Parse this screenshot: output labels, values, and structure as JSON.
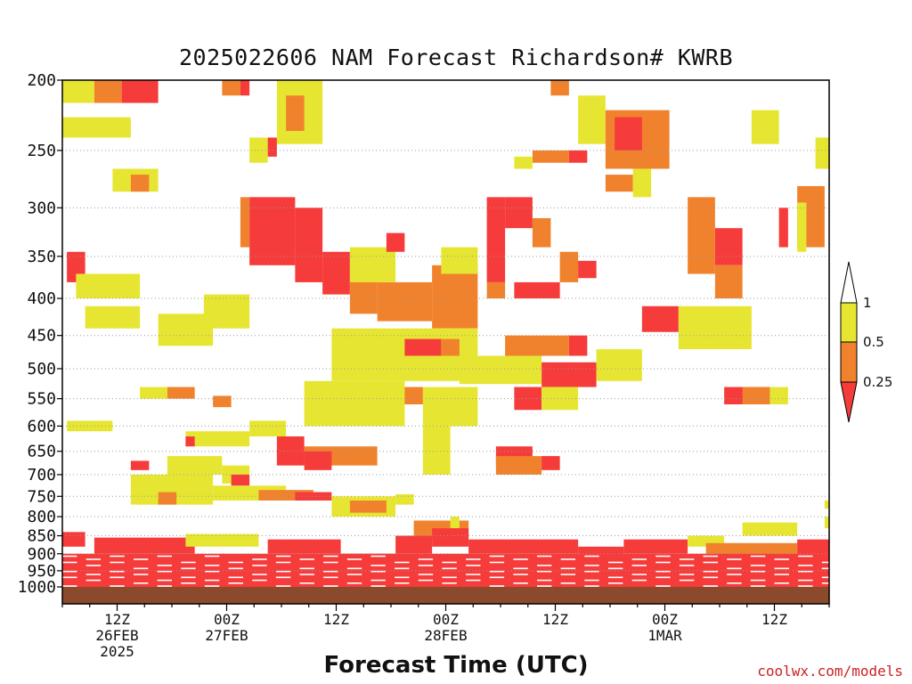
{
  "chart_data": {
    "type": "heatmap",
    "title": "2025022606 NAM Forecast Richardson# KWRB",
    "xlabel": "Forecast Time (UTC)",
    "ylabel": "",
    "y_axis_scale": "pressure (log)",
    "ylim": [
      1000,
      200
    ],
    "y_ticks": [
      200,
      250,
      300,
      350,
      400,
      450,
      500,
      550,
      600,
      650,
      700,
      750,
      800,
      850,
      900,
      950,
      1000
    ],
    "x_forecast_hours_range": [
      0,
      84
    ],
    "x_ticks": [
      {
        "hour": 6,
        "lines": [
          "12Z",
          "26FEB",
          "2025"
        ]
      },
      {
        "hour": 18,
        "lines": [
          "00Z",
          "27FEB"
        ]
      },
      {
        "hour": 30,
        "lines": [
          "12Z"
        ]
      },
      {
        "hour": 42,
        "lines": [
          "00Z",
          "28FEB"
        ]
      },
      {
        "hour": 54,
        "lines": [
          "12Z"
        ]
      },
      {
        "hour": 66,
        "lines": [
          "00Z",
          "1MAR"
        ]
      },
      {
        "hour": 78,
        "lines": [
          "12Z"
        ]
      }
    ],
    "grid": "dotted horizontal at pressure ticks",
    "legend": {
      "placement": "right",
      "boundaries": [
        "1",
        "0.5",
        "0.25"
      ],
      "bins": [
        {
          "range": "0.5-1",
          "color": "#e6e632"
        },
        {
          "range": "0.25-0.5",
          "color": "#f0822d"
        },
        {
          "range": "<0.25",
          "color": "#f63b3b"
        }
      ]
    },
    "colors": {
      "low": "#f63b3b",
      "mid": "#f0822d",
      "high": "#e6e632",
      "ground": "#8b4a2b"
    },
    "regions": [
      {
        "p": [
          200,
          215
        ],
        "h": [
          0,
          3.5
        ],
        "bin": "high"
      },
      {
        "p": [
          200,
          215
        ],
        "h": [
          3.5,
          6.5
        ],
        "bin": "mid"
      },
      {
        "p": [
          200,
          215
        ],
        "h": [
          6.5,
          10.5
        ],
        "bin": "low"
      },
      {
        "p": [
          225,
          240
        ],
        "h": [
          0,
          7.5
        ],
        "bin": "high"
      },
      {
        "p": [
          200,
          210
        ],
        "h": [
          17.5,
          19.5
        ],
        "bin": "mid"
      },
      {
        "p": [
          200,
          210
        ],
        "h": [
          19.5,
          20.5
        ],
        "bin": "low"
      },
      {
        "p": [
          200,
          245
        ],
        "h": [
          23.5,
          28.5
        ],
        "bin": "high"
      },
      {
        "p": [
          210,
          235
        ],
        "h": [
          24.5,
          26.5
        ],
        "bin": "mid"
      },
      {
        "p": [
          240,
          260
        ],
        "h": [
          20.5,
          22.5
        ],
        "bin": "high"
      },
      {
        "p": [
          240,
          255
        ],
        "h": [
          22.5,
          23.5
        ],
        "bin": "low"
      },
      {
        "p": [
          265,
          285
        ],
        "h": [
          5.5,
          10.5
        ],
        "bin": "high"
      },
      {
        "p": [
          270,
          285
        ],
        "h": [
          7.5,
          9.5
        ],
        "bin": "mid"
      },
      {
        "p": [
          200,
          210
        ],
        "h": [
          53.5,
          55.5
        ],
        "bin": "mid"
      },
      {
        "p": [
          210,
          245
        ],
        "h": [
          56.5,
          59.5
        ],
        "bin": "high"
      },
      {
        "p": [
          220,
          265
        ],
        "h": [
          59.5,
          66.5
        ],
        "bin": "mid"
      },
      {
        "p": [
          225,
          250
        ],
        "h": [
          60.5,
          63.5
        ],
        "bin": "low"
      },
      {
        "p": [
          250,
          260
        ],
        "h": [
          51.5,
          55.5
        ],
        "bin": "mid"
      },
      {
        "p": [
          250,
          260
        ],
        "h": [
          55.5,
          57.5
        ],
        "bin": "low"
      },
      {
        "p": [
          255,
          265
        ],
        "h": [
          49.5,
          51.5
        ],
        "bin": "high"
      },
      {
        "p": [
          220,
          245
        ],
        "h": [
          75.5,
          78.5
        ],
        "bin": "high"
      },
      {
        "p": [
          240,
          265
        ],
        "h": [
          82.5,
          84
        ],
        "bin": "high"
      },
      {
        "p": [
          270,
          285
        ],
        "h": [
          59.5,
          62.5
        ],
        "bin": "mid"
      },
      {
        "p": [
          265,
          290
        ],
        "h": [
          62.5,
          64.5
        ],
        "bin": "high"
      },
      {
        "p": [
          290,
          340
        ],
        "h": [
          19.5,
          20.5
        ],
        "bin": "mid"
      },
      {
        "p": [
          290,
          360
        ],
        "h": [
          20.5,
          25.5
        ],
        "bin": "low"
      },
      {
        "p": [
          300,
          380
        ],
        "h": [
          25.5,
          28.5
        ],
        "bin": "low"
      },
      {
        "p": [
          345,
          395
        ],
        "h": [
          28.5,
          31.5
        ],
        "bin": "low"
      },
      {
        "p": [
          360,
          420
        ],
        "h": [
          31.5,
          34.5
        ],
        "bin": "mid"
      },
      {
        "p": [
          380,
          430
        ],
        "h": [
          34.5,
          40.5
        ],
        "bin": "mid"
      },
      {
        "p": [
          360,
          440
        ],
        "h": [
          40.5,
          45.5
        ],
        "bin": "mid"
      },
      {
        "p": [
          340,
          380
        ],
        "h": [
          31.5,
          36.5
        ],
        "bin": "high"
      },
      {
        "p": [
          340,
          370
        ],
        "h": [
          41.5,
          45.5
        ],
        "bin": "high"
      },
      {
        "p": [
          325,
          345
        ],
        "h": [
          35.5,
          37.5
        ],
        "bin": "low"
      },
      {
        "p": [
          290,
          380
        ],
        "h": [
          46.5,
          48.5
        ],
        "bin": "low"
      },
      {
        "p": [
          290,
          320
        ],
        "h": [
          48.5,
          51.5
        ],
        "bin": "low"
      },
      {
        "p": [
          310,
          340
        ],
        "h": [
          51.5,
          53.5
        ],
        "bin": "mid"
      },
      {
        "p": [
          380,
          400
        ],
        "h": [
          49.5,
          54.5
        ],
        "bin": "low"
      },
      {
        "p": [
          380,
          400
        ],
        "h": [
          46.5,
          48.5
        ],
        "bin": "mid"
      },
      {
        "p": [
          345,
          380
        ],
        "h": [
          54.5,
          56.5
        ],
        "bin": "mid"
      },
      {
        "p": [
          355,
          375
        ],
        "h": [
          56.5,
          58.5
        ],
        "bin": "low"
      },
      {
        "p": [
          290,
          370
        ],
        "h": [
          68.5,
          71.5
        ],
        "bin": "mid"
      },
      {
        "p": [
          320,
          360
        ],
        "h": [
          71.5,
          74.5
        ],
        "bin": "low"
      },
      {
        "p": [
          360,
          400
        ],
        "h": [
          71.5,
          74.5
        ],
        "bin": "mid"
      },
      {
        "p": [
          300,
          340
        ],
        "h": [
          78.5,
          79.5
        ],
        "bin": "low"
      },
      {
        "p": [
          280,
          340
        ],
        "h": [
          80.5,
          83.5
        ],
        "bin": "mid"
      },
      {
        "p": [
          295,
          345
        ],
        "h": [
          80.5,
          81.5
        ],
        "bin": "high"
      },
      {
        "p": [
          345,
          380
        ],
        "h": [
          0.5,
          2.5
        ],
        "bin": "low"
      },
      {
        "p": [
          370,
          400
        ],
        "h": [
          1.5,
          8.5
        ],
        "bin": "high"
      },
      {
        "p": [
          410,
          440
        ],
        "h": [
          2.5,
          8.5
        ],
        "bin": "high"
      },
      {
        "p": [
          395,
          440
        ],
        "h": [
          15.5,
          20.5
        ],
        "bin": "high"
      },
      {
        "p": [
          420,
          465
        ],
        "h": [
          10.5,
          16.5
        ],
        "bin": "high"
      },
      {
        "p": [
          440,
          520
        ],
        "h": [
          29.5,
          45.5
        ],
        "bin": "high"
      },
      {
        "p": [
          455,
          480
        ],
        "h": [
          37.5,
          41.5
        ],
        "bin": "low"
      },
      {
        "p": [
          455,
          480
        ],
        "h": [
          41.5,
          43.5
        ],
        "bin": "mid"
      },
      {
        "p": [
          480,
          525
        ],
        "h": [
          43.5,
          52.5
        ],
        "bin": "high"
      },
      {
        "p": [
          450,
          480
        ],
        "h": [
          48.5,
          55.5
        ],
        "bin": "mid"
      },
      {
        "p": [
          450,
          480
        ],
        "h": [
          55.5,
          57.5
        ],
        "bin": "low"
      },
      {
        "p": [
          490,
          530
        ],
        "h": [
          52.5,
          58.5
        ],
        "bin": "low"
      },
      {
        "p": [
          470,
          520
        ],
        "h": [
          58.5,
          63.5
        ],
        "bin": "high"
      },
      {
        "p": [
          410,
          445
        ],
        "h": [
          63.5,
          67.5
        ],
        "bin": "low"
      },
      {
        "p": [
          410,
          470
        ],
        "h": [
          67.5,
          75.5
        ],
        "bin": "high"
      },
      {
        "p": [
          530,
          550
        ],
        "h": [
          8.5,
          11.5
        ],
        "bin": "high"
      },
      {
        "p": [
          530,
          550
        ],
        "h": [
          11.5,
          14.5
        ],
        "bin": "mid"
      },
      {
        "p": [
          545,
          565
        ],
        "h": [
          16.5,
          18.5
        ],
        "bin": "mid"
      },
      {
        "p": [
          530,
          560
        ],
        "h": [
          36.5,
          39.5
        ],
        "bin": "mid"
      },
      {
        "p": [
          520,
          600
        ],
        "h": [
          26.5,
          37.5
        ],
        "bin": "high"
      },
      {
        "p": [
          530,
          600
        ],
        "h": [
          39.5,
          45.5
        ],
        "bin": "high"
      },
      {
        "p": [
          530,
          570
        ],
        "h": [
          49.5,
          52.5
        ],
        "bin": "low"
      },
      {
        "p": [
          530,
          570
        ],
        "h": [
          52.5,
          56.5
        ],
        "bin": "high"
      },
      {
        "p": [
          530,
          560
        ],
        "h": [
          72.5,
          77.5
        ],
        "bin": "low"
      },
      {
        "p": [
          530,
          560
        ],
        "h": [
          74.5,
          77.5
        ],
        "bin": "mid"
      },
      {
        "p": [
          530,
          560
        ],
        "h": [
          77.5,
          79.5
        ],
        "bin": "high"
      },
      {
        "p": [
          590,
          610
        ],
        "h": [
          0.5,
          5.5
        ],
        "bin": "high"
      },
      {
        "p": [
          610,
          640
        ],
        "h": [
          13.5,
          20.5
        ],
        "bin": "high"
      },
      {
        "p": [
          620,
          640
        ],
        "h": [
          13.5,
          14.5
        ],
        "bin": "low"
      },
      {
        "p": [
          590,
          620
        ],
        "h": [
          20.5,
          24.5
        ],
        "bin": "high"
      },
      {
        "p": [
          620,
          680
        ],
        "h": [
          23.5,
          26.5
        ],
        "bin": "low"
      },
      {
        "p": [
          640,
          680
        ],
        "h": [
          26.5,
          34.5
        ],
        "bin": "mid"
      },
      {
        "p": [
          650,
          690
        ],
        "h": [
          26.5,
          29.5
        ],
        "bin": "low"
      },
      {
        "p": [
          600,
          700
        ],
        "h": [
          39.5,
          42.5
        ],
        "bin": "high"
      },
      {
        "p": [
          640,
          680
        ],
        "h": [
          47.5,
          51.5
        ],
        "bin": "low"
      },
      {
        "p": [
          660,
          700
        ],
        "h": [
          47.5,
          52.5
        ],
        "bin": "mid"
      },
      {
        "p": [
          660,
          690
        ],
        "h": [
          52.5,
          54.5
        ],
        "bin": "low"
      },
      {
        "p": [
          670,
          690
        ],
        "h": [
          7.5,
          9.5
        ],
        "bin": "low"
      },
      {
        "p": [
          660,
          700
        ],
        "h": [
          11.5,
          17.5
        ],
        "bin": "high"
      },
      {
        "p": [
          680,
          720
        ],
        "h": [
          17.5,
          20.5
        ],
        "bin": "high"
      },
      {
        "p": [
          700,
          725
        ],
        "h": [
          18.5,
          20.5
        ],
        "bin": "low"
      },
      {
        "p": [
          700,
          770
        ],
        "h": [
          7.5,
          16.5
        ],
        "bin": "high"
      },
      {
        "p": [
          740,
          770
        ],
        "h": [
          10.5,
          12.5
        ],
        "bin": "mid"
      },
      {
        "p": [
          725,
          760
        ],
        "h": [
          16.5,
          24.5
        ],
        "bin": "high"
      },
      {
        "p": [
          735,
          760
        ],
        "h": [
          21.5,
          27.5
        ],
        "bin": "mid"
      },
      {
        "p": [
          740,
          760
        ],
        "h": [
          25.5,
          29.5
        ],
        "bin": "low"
      },
      {
        "p": [
          750,
          800
        ],
        "h": [
          29.5,
          36.5
        ],
        "bin": "high"
      },
      {
        "p": [
          760,
          790
        ],
        "h": [
          31.5,
          35.5
        ],
        "bin": "mid"
      },
      {
        "p": [
          745,
          770
        ],
        "h": [
          36.5,
          38.5
        ],
        "bin": "high"
      },
      {
        "p": [
          810,
          860
        ],
        "h": [
          38.5,
          44.5
        ],
        "bin": "mid"
      },
      {
        "p": [
          800,
          830
        ],
        "h": [
          42.5,
          43.5
        ],
        "bin": "high"
      },
      {
        "p": [
          815,
          850
        ],
        "h": [
          74.5,
          80.5
        ],
        "bin": "high"
      },
      {
        "p": [
          760,
          780
        ],
        "h": [
          83.5,
          84
        ],
        "bin": "high"
      },
      {
        "p": [
          800,
          830
        ],
        "h": [
          83.5,
          84
        ],
        "bin": "high"
      },
      {
        "p": [
          840,
          880
        ],
        "h": [
          0,
          2.5
        ],
        "bin": "low"
      },
      {
        "p": [
          855,
          900
        ],
        "h": [
          3.5,
          14.5
        ],
        "bin": "low"
      },
      {
        "p": [
          845,
          880
        ],
        "h": [
          13.5,
          21.5
        ],
        "bin": "high"
      },
      {
        "p": [
          860,
          900
        ],
        "h": [
          22.5,
          30.5
        ],
        "bin": "low"
      },
      {
        "p": [
          900,
          940
        ],
        "h": [
          30.5,
          36.5
        ],
        "bin": "low"
      },
      {
        "p": [
          850,
          900
        ],
        "h": [
          36.5,
          40.5
        ],
        "bin": "low"
      },
      {
        "p": [
          830,
          880
        ],
        "h": [
          40.5,
          44.5
        ],
        "bin": "low"
      },
      {
        "p": [
          860,
          900
        ],
        "h": [
          44.5,
          56.5
        ],
        "bin": "low"
      },
      {
        "p": [
          880,
          920
        ],
        "h": [
          56.5,
          61.5
        ],
        "bin": "low"
      },
      {
        "p": [
          860,
          900
        ],
        "h": [
          61.5,
          68.5
        ],
        "bin": "low"
      },
      {
        "p": [
          850,
          880
        ],
        "h": [
          68.5,
          72.5
        ],
        "bin": "high"
      },
      {
        "p": [
          870,
          920
        ],
        "h": [
          70.5,
          80.5
        ],
        "bin": "mid"
      },
      {
        "p": [
          860,
          920
        ],
        "h": [
          80.5,
          84
        ],
        "bin": "low"
      },
      {
        "p": [
          900,
          1000
        ],
        "h": [
          0,
          84
        ],
        "bin": "low"
      }
    ],
    "region_colors": {
      "low": "#f63b3b",
      "mid": "#f0822d",
      "high": "#e6e632"
    }
  },
  "credit": "coolwx.com/models"
}
